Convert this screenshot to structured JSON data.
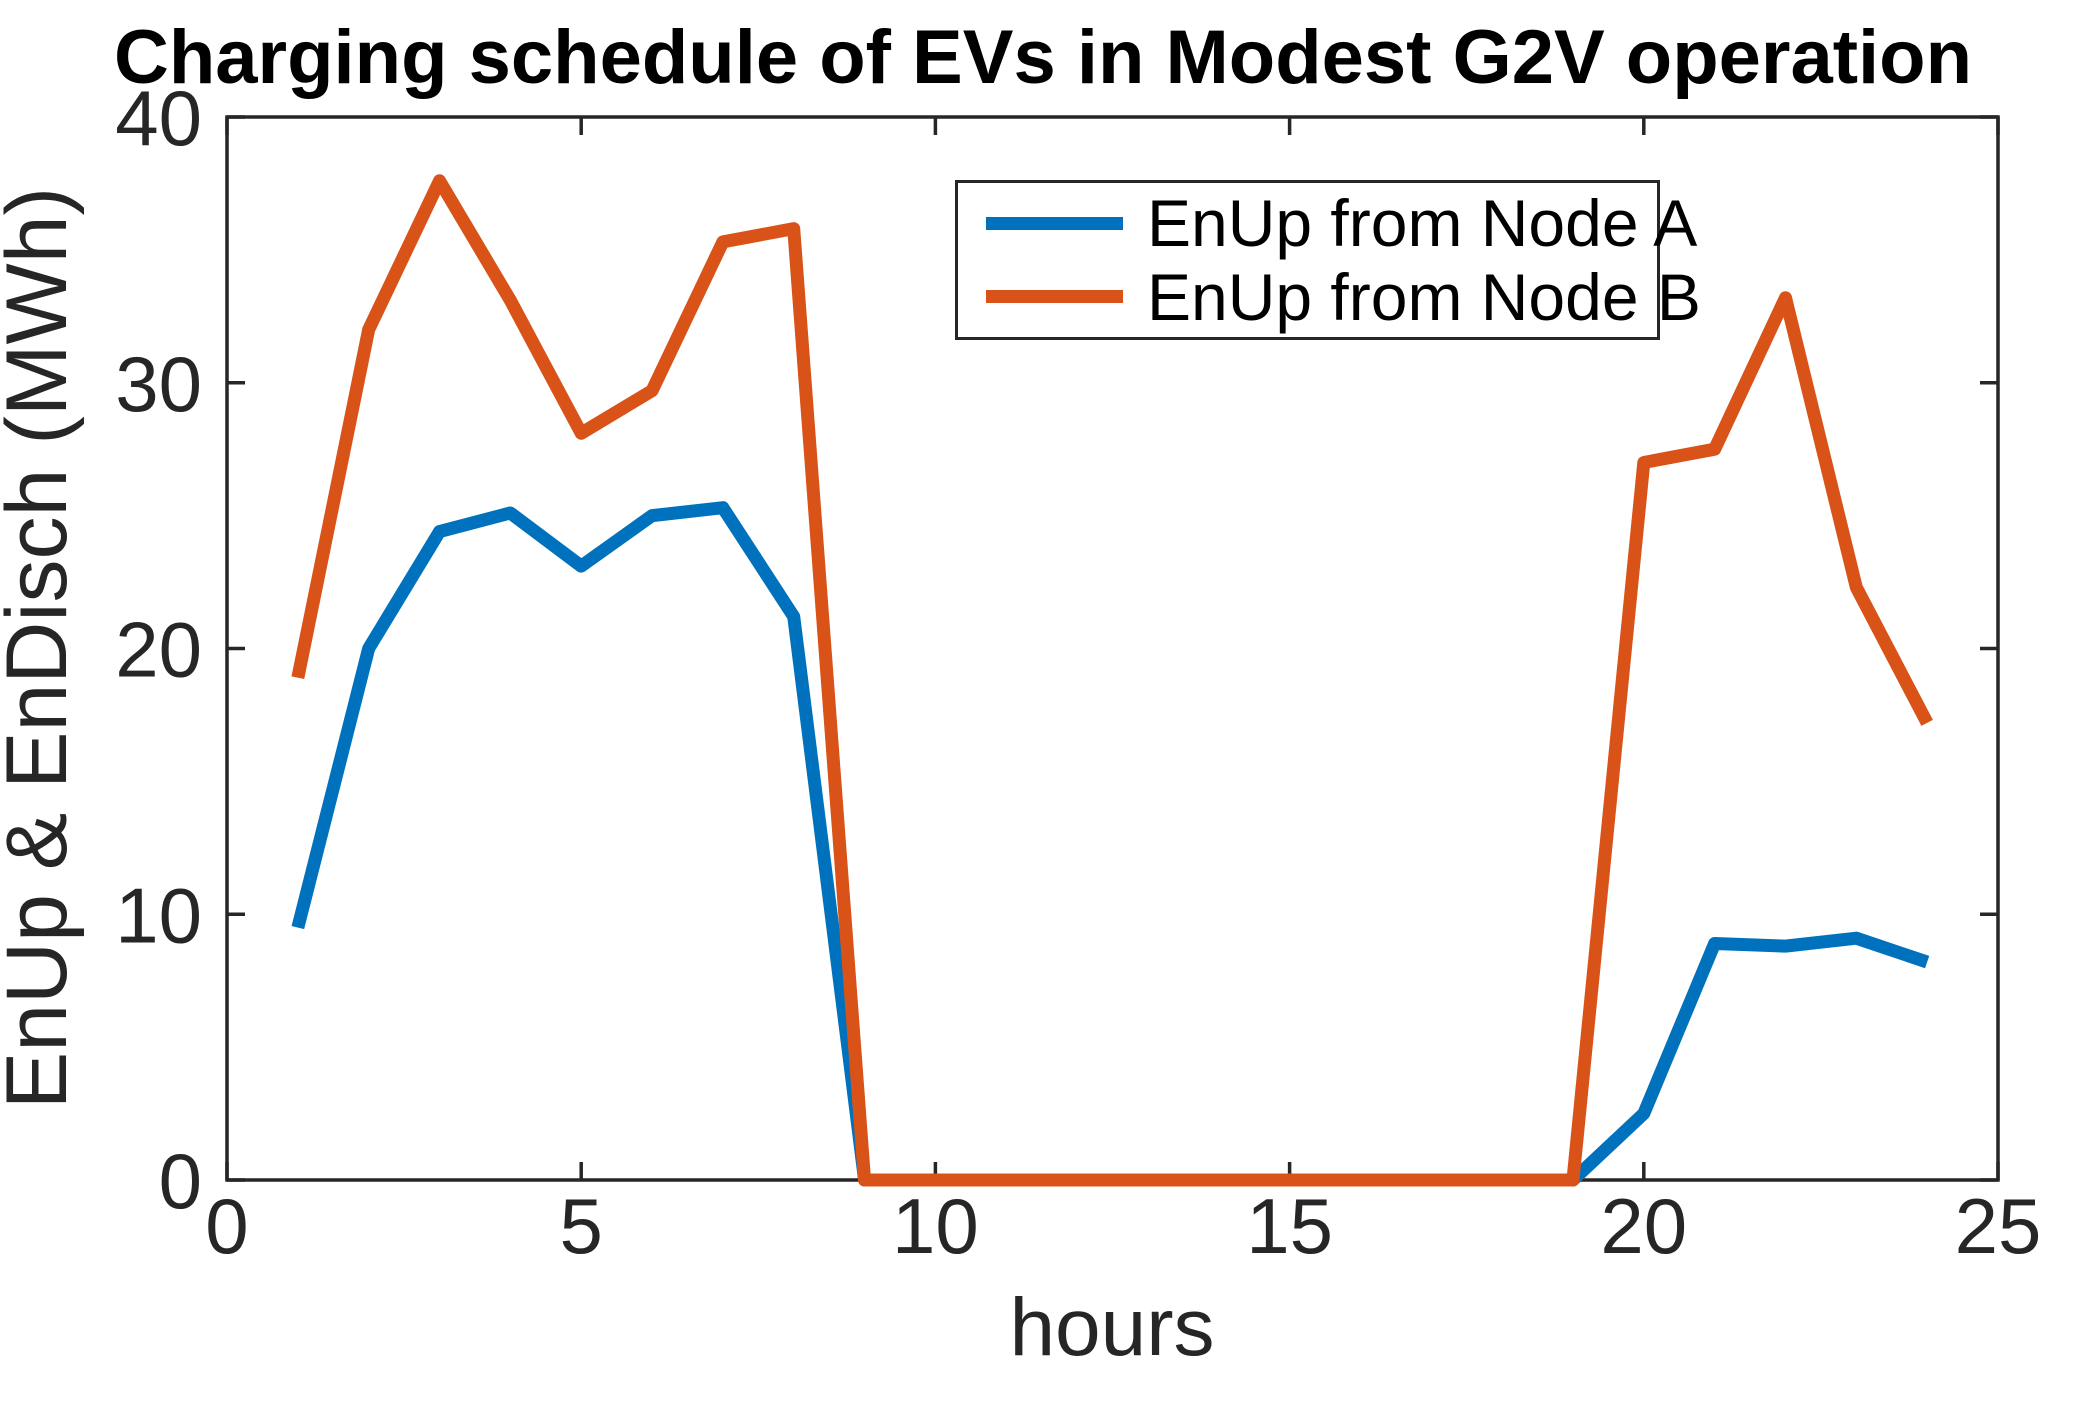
{
  "title": "Charging schedule of EVs in Modest G2V operation",
  "chart_data": {
    "type": "line",
    "title": "Charging schedule of EVs in Modest G2V operation",
    "xlabel": "hours",
    "ylabel": "EnUp & EnDisch (MWh)",
    "xlim": [
      0,
      25
    ],
    "ylim": [
      0,
      40
    ],
    "xticks": [
      0,
      5,
      10,
      15,
      20,
      25
    ],
    "yticks": [
      0,
      10,
      20,
      30,
      40
    ],
    "grid": false,
    "legend_position": "inside upper right",
    "axis_color": "#262626",
    "line_width": 13,
    "x": [
      1,
      2,
      3,
      4,
      5,
      6,
      7,
      8,
      9,
      10,
      11,
      12,
      13,
      14,
      15,
      16,
      17,
      18,
      19,
      20,
      21,
      22,
      23,
      24
    ],
    "series": [
      {
        "name": "EnUp from Node A",
        "color": "#0072BD",
        "values": [
          9.5,
          20,
          24.4,
          25.1,
          23.1,
          25,
          25.3,
          21.2,
          0,
          0,
          0,
          0,
          0,
          0,
          0,
          0,
          0,
          0,
          0,
          2.5,
          8.9,
          8.8,
          9.1,
          8.2
        ]
      },
      {
        "name": "EnUp from Node B",
        "color": "#D95319",
        "values": [
          18.9,
          32,
          37.6,
          33.1,
          28.1,
          29.7,
          35.3,
          35.8,
          0,
          0,
          0,
          0,
          0,
          0,
          0,
          0,
          0,
          0,
          0,
          27,
          27.5,
          33.2,
          22.3,
          17.2
        ]
      }
    ]
  }
}
